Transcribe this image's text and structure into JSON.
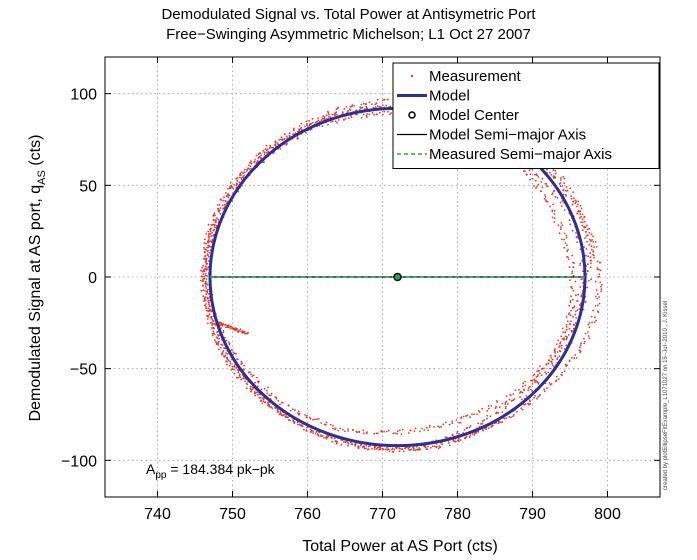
{
  "chart_data": {
    "type": "scatter",
    "title": "Demodulated Signal vs. Total Power at Antisymetric Port",
    "subtitle": "Free−Swinging Asymmetric Michelson; L1 Oct 27 2007",
    "xlabel": "Total Power at AS Port (cts)",
    "ylabel_main": "Demodulated Signal at AS port, q",
    "ylabel_sub": "AS",
    "ylabel_suffix": " (cts)",
    "xlim": [
      733,
      807
    ],
    "ylim": [
      -120,
      120
    ],
    "xticks": [
      740,
      750,
      760,
      770,
      780,
      790,
      800
    ],
    "yticks": [
      -100,
      -50,
      0,
      50,
      100
    ],
    "xtick_labels": [
      "740",
      "750",
      "760",
      "770",
      "780",
      "790",
      "800"
    ],
    "ytick_labels": [
      "−100",
      "−50",
      "0",
      "50",
      "100"
    ],
    "grid": true,
    "legend_position": "top-right",
    "legend": [
      {
        "label": "Measurement",
        "style": "red-dots",
        "color": "#e8392e"
      },
      {
        "label": "Model",
        "style": "thick-line",
        "color": "#28309a"
      },
      {
        "label": "Model Center",
        "style": "circle-marker",
        "color": "#000000"
      },
      {
        "label": "Model Semi−major Axis",
        "style": "line",
        "color": "#000000"
      },
      {
        "label": "Measured Semi−major Axis",
        "style": "dashed-line",
        "color": "#1fa85a"
      }
    ],
    "model_ellipse": {
      "center_x": 772,
      "center_y": 0,
      "semi_major_x": 25,
      "semi_minor_y": 92,
      "color": "#28309a"
    },
    "model_center": [
      772,
      0
    ],
    "model_semi_major_axis": {
      "x": [
        747,
        797
      ],
      "y": [
        0,
        0
      ]
    },
    "measured_semi_major_axis": {
      "x": [
        747,
        797
      ],
      "y": [
        0,
        0
      ]
    },
    "measurement": {
      "color": "#e8392e",
      "loops": [
        {
          "center_x": 772,
          "center_y": 1,
          "rx": 25.5,
          "ry": 93
        },
        {
          "center_x": 771.5,
          "center_y": -1,
          "rx": 24.8,
          "ry": 91
        },
        {
          "center_x": 772.5,
          "center_y": 0,
          "rx": 25.8,
          "ry": 95
        },
        {
          "center_x": 771,
          "center_y": 2,
          "rx": 24.3,
          "ry": 89
        }
      ]
    },
    "annotation_prefix": "A",
    "annotation_sub": "pp",
    "annotation_value": " = 184.384 pk−pk",
    "side_note": "created by plotEllipseFitExample_L1071027 on 15−Jul−2010 , J. Kissel"
  }
}
